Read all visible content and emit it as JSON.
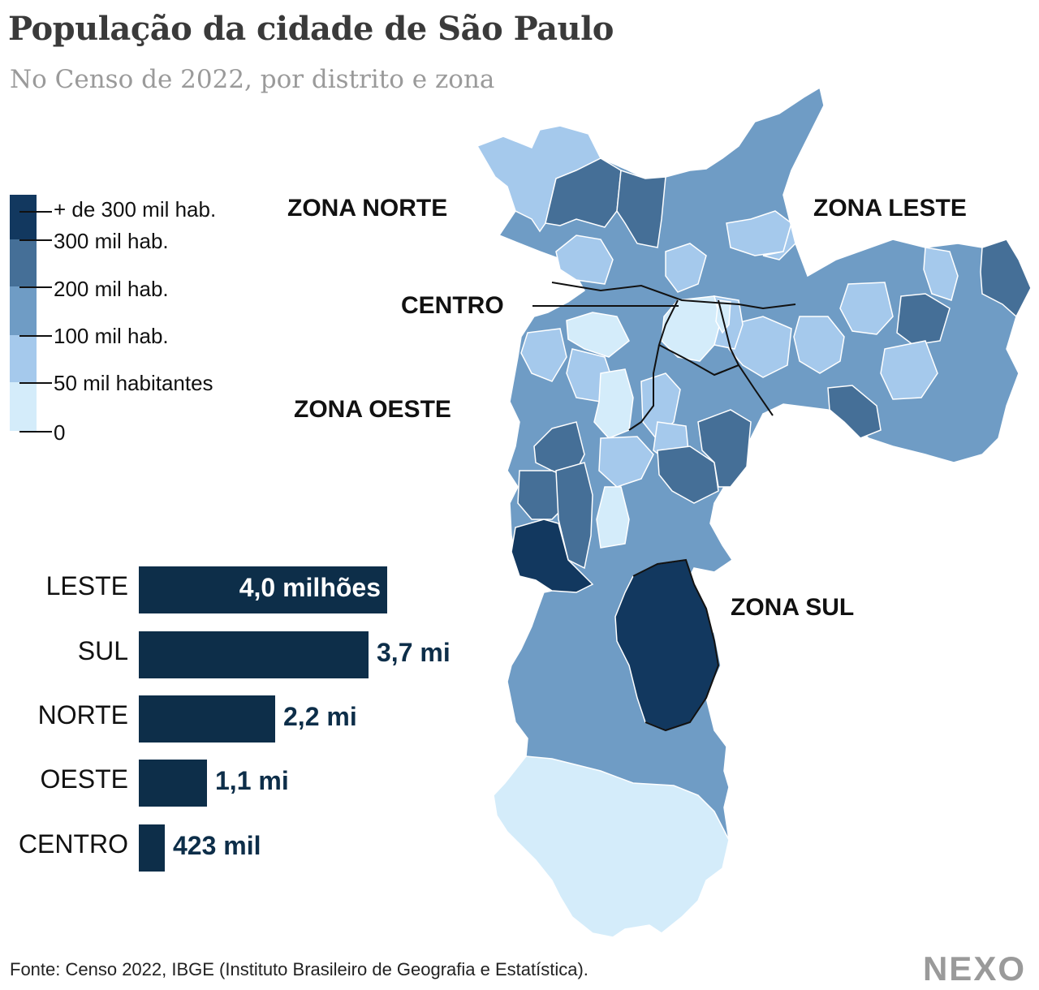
{
  "title": "População da cidade de São Paulo",
  "subtitle": "No Censo de 2022, por distrito e zona",
  "legend": {
    "colors": [
      "#12385f",
      "#456f97",
      "#6f9cc5",
      "#a5c9ec",
      "#d4ecfa"
    ],
    "labels": [
      "+ de 300 mil hab.",
      "300 mil hab.",
      "200 mil hab.",
      "100 mil hab.",
      "50 mil habitantes",
      "0"
    ]
  },
  "zones": {
    "norte": "ZONA NORTE",
    "leste": "ZONA LESTE",
    "centro": "CENTRO",
    "oeste": "ZONA OESTE",
    "sul": "ZONA SUL"
  },
  "chart_data": {
    "type": "bar",
    "categories": [
      "LESTE",
      "SUL",
      "NORTE",
      "OESTE",
      "CENTRO"
    ],
    "values": [
      4000000,
      3700000,
      2200000,
      1100000,
      423000
    ],
    "value_labels": [
      "4,0 milhões",
      "3,7 mi",
      "2,2 mi",
      "1,1 mi",
      "423 mil"
    ]
  },
  "source": "Fonte: Censo 2022, IBGE (Instituto Brasileiro de Geografia e Estatística).",
  "logo": "NEXO"
}
